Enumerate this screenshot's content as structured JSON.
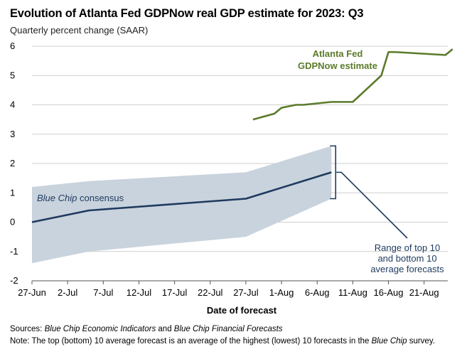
{
  "chart_data": {
    "type": "line",
    "title": "Evolution of Atlanta Fed GDPNow real GDP estimate for 2023: Q3",
    "subtitle": "Quarterly percent change (SAAR)",
    "xlabel": "Date of forecast",
    "ylabel": "",
    "ylim": [
      -2,
      6
    ],
    "yticks": [
      "6",
      "5",
      "4",
      "3",
      "2",
      "1",
      "0",
      "-1",
      "-2"
    ],
    "xticks": [
      "27-Jun",
      "2-Jul",
      "7-Jul",
      "12-Jul",
      "17-Jul",
      "22-Jul",
      "27-Jul",
      "1-Aug",
      "6-Aug",
      "11-Aug",
      "16-Aug",
      "21-Aug"
    ],
    "grid": "horizontal",
    "series": [
      {
        "name": "Atlanta Fed GDPNow estimate",
        "color": "#5b7b2a",
        "points": [
          [
            "2023-07-28",
            3.5
          ],
          [
            "2023-07-31",
            3.7
          ],
          [
            "2023-08-01",
            3.9
          ],
          [
            "2023-08-03",
            4.0
          ],
          [
            "2023-08-04",
            4.0
          ],
          [
            "2023-08-08",
            4.1
          ],
          [
            "2023-08-09",
            4.1
          ],
          [
            "2023-08-11",
            4.1
          ],
          [
            "2023-08-15",
            5.0
          ],
          [
            "2023-08-16",
            5.8
          ],
          [
            "2023-08-17",
            5.8
          ],
          [
            "2023-08-24",
            5.7
          ],
          [
            "2023-08-25",
            5.9
          ]
        ]
      },
      {
        "name": "Blue Chip consensus",
        "color": "#1e3a5f",
        "points": [
          [
            "2023-06-27",
            0.0
          ],
          [
            "2023-07-05",
            0.4
          ],
          [
            "2023-07-27",
            0.8
          ],
          [
            "2023-08-08",
            1.7
          ]
        ]
      },
      {
        "name": "Range of top 10 and bottom 10 average forecasts",
        "type": "area-band",
        "color": "#c6d1db",
        "points": [
          [
            "2023-06-27",
            -1.4,
            1.2
          ],
          [
            "2023-07-05",
            -1.0,
            1.4
          ],
          [
            "2023-07-27",
            -0.5,
            1.7
          ],
          [
            "2023-08-08",
            0.8,
            2.6
          ]
        ]
      }
    ],
    "annotations": {
      "gdpnow": [
        "Atlanta Fed",
        "GDPNow estimate"
      ],
      "bluechip": "Blue Chip consensus",
      "range": [
        "Range of top 10",
        "and bottom 10",
        "average forecasts"
      ]
    }
  },
  "footnotes": {
    "sources_label": "Sources:",
    "sources_1": "Blue Chip Economic Indicators",
    "sources_and": " and ",
    "sources_2": "Blue Chip Financial Forecasts",
    "note_label": "Note:",
    "note_pre": " The top (bottom) 10 average forecast is an average of the highest (lowest) 10 forecasts in the ",
    "note_ital": "Blue Chip",
    "note_post": " survey."
  }
}
